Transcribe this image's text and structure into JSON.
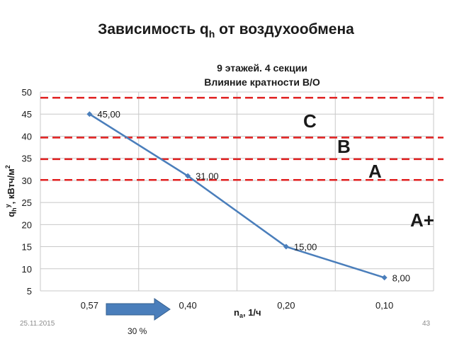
{
  "slide": {
    "title_main": "Зависимость q",
    "title_sub": "h",
    "title_rest": " от воздухообмена",
    "date": "25.11.2015",
    "page_number": "43",
    "arrow_label": "30 %"
  },
  "chart_data": {
    "type": "line",
    "title_line1": "9 этажей. 4 секции",
    "title_line2": "Влияние кратности В/О",
    "categories": [
      "0,57",
      "0,40",
      "0,20",
      "0,10"
    ],
    "values": [
      45,
      31,
      15,
      8
    ],
    "data_labels": [
      "45,00",
      "31,00",
      "15,00",
      "8,00"
    ],
    "xlabel": "n",
    "xlabel_sub": "a",
    "xlabel_unit": ", 1/ч",
    "ylabel": "q",
    "ylabel_sub": "h",
    "ylabel_sup": "у",
    "ylabel_unit": ", кВтч/м",
    "ylabel_unit_sup": "2",
    "ylim": [
      5,
      50
    ],
    "yticks": [
      5,
      10,
      15,
      20,
      25,
      30,
      35,
      40,
      45,
      50
    ],
    "grid": true,
    "series_color": "#4a7ebb",
    "thresholds": [
      {
        "value": 48.7,
        "label": ""
      },
      {
        "value": 39.7,
        "label": "C"
      },
      {
        "value": 34.8,
        "label": "B"
      },
      {
        "value": 30.1,
        "label": "A"
      }
    ],
    "threshold_color": "#e01f1f",
    "class_labels": [
      "C",
      "B",
      "A",
      "A+"
    ]
  }
}
